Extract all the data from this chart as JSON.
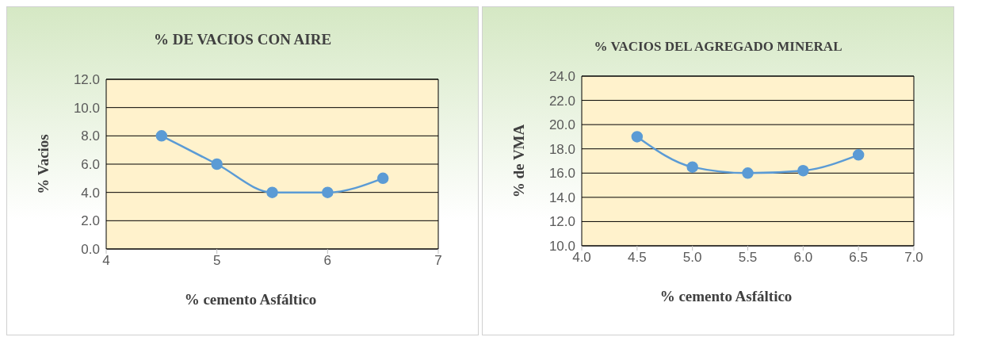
{
  "chart_data": [
    {
      "type": "line",
      "title": "% DE VACIOS CON AIRE",
      "xlabel": "% cemento Asfáltico",
      "ylabel": "% Vacios",
      "x": [
        4.5,
        5,
        5.5,
        6,
        6.5
      ],
      "series": [
        {
          "color": "#5b9bd5",
          "values": [
            8,
            6,
            4,
            4,
            5
          ]
        }
      ],
      "xlim": [
        4,
        7
      ],
      "xticks": [
        4,
        5,
        6,
        7
      ],
      "ylim": [
        0,
        12
      ],
      "yticks": [
        {
          "value": 0,
          "label": "0.0"
        },
        {
          "value": 2,
          "label": "2.0"
        },
        {
          "value": 4,
          "label": "4.0"
        },
        {
          "value": 6,
          "label": "6.0"
        },
        {
          "value": 8,
          "label": "8.0"
        },
        {
          "value": 10,
          "label": "10.0"
        },
        {
          "value": 12,
          "label": "12.0"
        }
      ],
      "grid": "y",
      "marker": "circle",
      "line_style": "solid"
    },
    {
      "type": "line",
      "title": "% VACIOS DEL AGREGADO MINERAL",
      "xlabel": "% cemento Asfáltico",
      "ylabel": "% de VMA",
      "x": [
        4.5,
        5,
        5.5,
        6,
        6.5
      ],
      "series": [
        {
          "color": "#5b9bd5",
          "values": [
            19,
            16.5,
            16,
            16.2,
            17.5
          ]
        }
      ],
      "xlim": [
        4,
        7
      ],
      "xticks": [
        {
          "value": 4,
          "label": "4.0"
        },
        {
          "value": 4.5,
          "label": "4.5"
        },
        {
          "value": 5,
          "label": "5.0"
        },
        {
          "value": 5.5,
          "label": "5.5"
        },
        {
          "value": 6,
          "label": "6.0"
        },
        {
          "value": 6.5,
          "label": "6.5"
        },
        {
          "value": 7,
          "label": "7.0"
        }
      ],
      "ylim": [
        10,
        24
      ],
      "yticks": [
        {
          "value": 10,
          "label": "10.0"
        },
        {
          "value": 12,
          "label": "12.0"
        },
        {
          "value": 14,
          "label": "14.0"
        },
        {
          "value": 16,
          "label": "16.0"
        },
        {
          "value": 18,
          "label": "18.0"
        },
        {
          "value": 20,
          "label": "20.0"
        },
        {
          "value": 22,
          "label": "22.0"
        },
        {
          "value": 24,
          "label": "24.0"
        }
      ],
      "grid": "y",
      "marker": "circle",
      "line_style": "solid"
    }
  ]
}
